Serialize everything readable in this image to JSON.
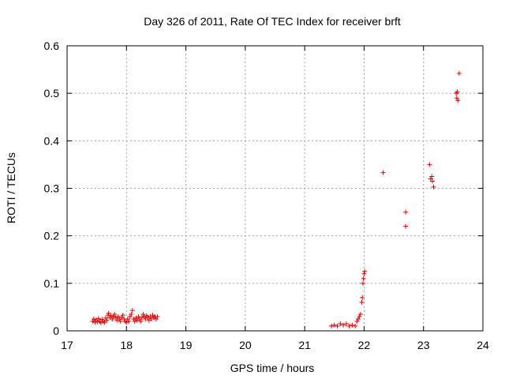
{
  "chart_data": {
    "type": "scatter",
    "title": "Day 326 of 2011, Rate Of TEC Index for receiver brft",
    "xlabel": "GPS time / hours",
    "ylabel": "ROTI / TECUs",
    "xlim": [
      17,
      24
    ],
    "ylim": [
      0,
      0.6
    ],
    "x_ticks": [
      "17",
      "18",
      "19",
      "20",
      "21",
      "22",
      "23",
      "24"
    ],
    "y_ticks": [
      "0",
      "0.1",
      "0.2",
      "0.3",
      "0.4",
      "0.5",
      "0.6"
    ],
    "grid": true,
    "marker": "plus",
    "color": "#e00000",
    "series": [
      {
        "points": [
          [
            17.43,
            0.02
          ],
          [
            17.45,
            0.025
          ],
          [
            17.47,
            0.018
          ],
          [
            17.49,
            0.023
          ],
          [
            17.51,
            0.019
          ],
          [
            17.53,
            0.026
          ],
          [
            17.55,
            0.02
          ],
          [
            17.57,
            0.017
          ],
          [
            17.59,
            0.024
          ],
          [
            17.61,
            0.02
          ],
          [
            17.63,
            0.018
          ],
          [
            17.65,
            0.027
          ],
          [
            17.67,
            0.022
          ],
          [
            17.69,
            0.033
          ],
          [
            17.7,
            0.037
          ],
          [
            17.72,
            0.028
          ],
          [
            17.74,
            0.032
          ],
          [
            17.76,
            0.025
          ],
          [
            17.78,
            0.03
          ],
          [
            17.8,
            0.035
          ],
          [
            17.82,
            0.028
          ],
          [
            17.84,
            0.022
          ],
          [
            17.86,
            0.03
          ],
          [
            17.88,
            0.025
          ],
          [
            17.9,
            0.02
          ],
          [
            17.92,
            0.028
          ],
          [
            17.94,
            0.033
          ],
          [
            17.96,
            0.025
          ],
          [
            17.98,
            0.02
          ],
          [
            18.0,
            0.018
          ],
          [
            18.02,
            0.025
          ],
          [
            18.04,
            0.02
          ],
          [
            18.06,
            0.03
          ],
          [
            18.08,
            0.035
          ],
          [
            18.1,
            0.043
          ],
          [
            18.12,
            0.025
          ],
          [
            18.14,
            0.02
          ],
          [
            18.16,
            0.027
          ],
          [
            18.18,
            0.022
          ],
          [
            18.2,
            0.03
          ],
          [
            18.22,
            0.025
          ],
          [
            18.24,
            0.02
          ],
          [
            18.26,
            0.028
          ],
          [
            18.28,
            0.035
          ],
          [
            18.3,
            0.03
          ],
          [
            18.32,
            0.025
          ],
          [
            18.34,
            0.032
          ],
          [
            18.36,
            0.028
          ],
          [
            18.38,
            0.022
          ],
          [
            18.4,
            0.03
          ],
          [
            18.42,
            0.025
          ],
          [
            18.44,
            0.033
          ],
          [
            18.46,
            0.028
          ],
          [
            18.48,
            0.03
          ],
          [
            18.5,
            0.025
          ],
          [
            18.52,
            0.03
          ],
          [
            21.45,
            0.01
          ],
          [
            21.5,
            0.012
          ],
          [
            21.55,
            0.01
          ],
          [
            21.6,
            0.015
          ],
          [
            21.65,
            0.012
          ],
          [
            21.7,
            0.015
          ],
          [
            21.75,
            0.01
          ],
          [
            21.8,
            0.012
          ],
          [
            21.85,
            0.01
          ],
          [
            21.88,
            0.02
          ],
          [
            21.9,
            0.025
          ],
          [
            21.92,
            0.03
          ],
          [
            21.94,
            0.035
          ],
          [
            21.96,
            0.06
          ],
          [
            21.97,
            0.07
          ],
          [
            21.98,
            0.1
          ],
          [
            21.99,
            0.11
          ],
          [
            22.0,
            0.12
          ],
          [
            22.01,
            0.125
          ],
          [
            22.32,
            0.333
          ],
          [
            22.7,
            0.25
          ],
          [
            22.7,
            0.22
          ],
          [
            23.1,
            0.35
          ],
          [
            23.12,
            0.32
          ],
          [
            23.14,
            0.325
          ],
          [
            23.15,
            0.315
          ],
          [
            23.17,
            0.303
          ],
          [
            23.55,
            0.5
          ],
          [
            23.56,
            0.49
          ],
          [
            23.57,
            0.503
          ],
          [
            23.58,
            0.485
          ],
          [
            23.6,
            0.542
          ]
        ]
      }
    ]
  }
}
